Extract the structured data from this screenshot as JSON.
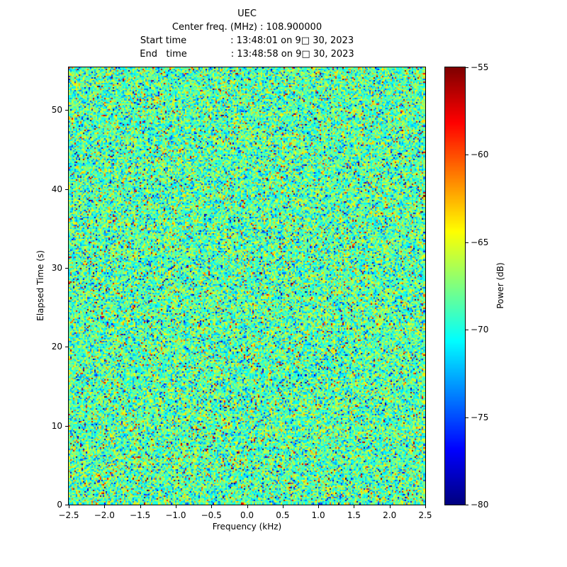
{
  "figure": {
    "subtitle_lines": [
      "Center freq. (MHz) : 108.900000",
      "Start time               : 13:48:01 on 9□ 30, 2023",
      "End   time               : 13:48:58 on 9□ 30, 2023"
    ]
  },
  "chart_data": {
    "type": "heatmap",
    "title": "UEC",
    "xlabel": "Frequency (kHz)",
    "ylabel": "Elapsed Time (s)",
    "xlim": [
      -2.5,
      2.5
    ],
    "ylim": [
      0,
      55.4
    ],
    "xtick_values": [
      -2.5,
      -2.0,
      -1.5,
      -1.0,
      -0.5,
      0.0,
      0.5,
      1.0,
      1.5,
      2.0,
      2.5
    ],
    "xtick_labels": [
      "−2.5",
      "−2.0",
      "−1.5",
      "−1.0",
      "−0.5",
      "0.0",
      "0.5",
      "1.0",
      "1.5",
      "2.0",
      "2.5"
    ],
    "ytick_values": [
      0,
      10,
      20,
      30,
      40,
      50
    ],
    "ytick_labels": [
      "0",
      "10",
      "20",
      "30",
      "40",
      "50"
    ],
    "grid": false,
    "colorbar": {
      "label": "Power (dB)",
      "vmin": -80,
      "vmax": -55,
      "tick_values": [
        -55,
        -60,
        -65,
        -70,
        -75,
        -80
      ],
      "tick_labels": [
        "−55",
        "−60",
        "−65",
        "−70",
        "−75",
        "−80"
      ],
      "colormap": "jet",
      "position": "right"
    },
    "data_description": {
      "kind": "waterfall spectrogram of broadband random noise, no visible signal features",
      "mean_power_db": -68.5,
      "std_power_db": 2.7,
      "speckle_fraction": 0.1,
      "grid_cells_x": 250,
      "grid_cells_y": 300,
      "seed": 20230930
    }
  }
}
